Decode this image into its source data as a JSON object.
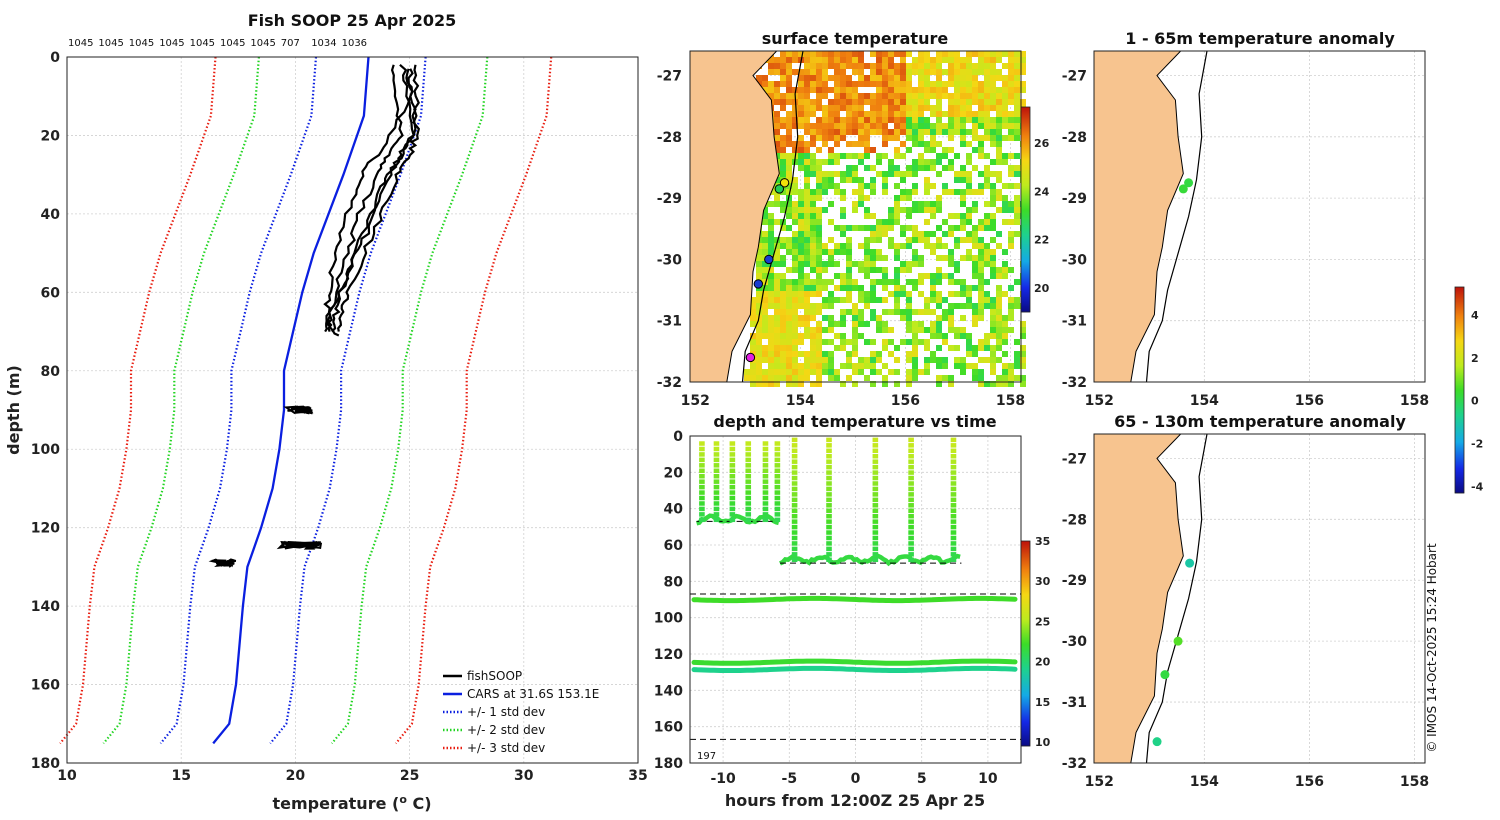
{
  "watermark": "© IMOS 14-Oct-2025 15:24 Hobart",
  "colors": {
    "land": "#f7c48f",
    "coast": "#000000",
    "black": "#000000",
    "blue": "#0a1fe0",
    "green": "#22d422",
    "red": "#e81d10",
    "grid": "#d0d0d0"
  },
  "chart_data": [
    {
      "id": "profile",
      "type": "line",
      "title": "Fish SOOP 25 Apr 2025",
      "xlabel": "temperature (",
      "xlabel_sup": "o",
      "xlabel_end": " C)",
      "ylabel": "depth (m)",
      "xlim": [
        10,
        35
      ],
      "ylim": [
        0,
        180
      ],
      "xticks": [
        "10",
        "15",
        "20",
        "25",
        "30",
        "35"
      ],
      "yticks": [
        "0",
        "20",
        "40",
        "60",
        "80",
        "100",
        "120",
        "140",
        "160",
        "180"
      ],
      "top_counts": [
        "1045",
        "1045",
        "1045",
        "1045",
        "1045",
        "1045",
        "1045",
        "707",
        "1034",
        "1036"
      ],
      "legend": [
        {
          "label": "fishSOOP",
          "color": "#000000",
          "style": "solid"
        },
        {
          "label": "CARS at 31.6S 153.1E",
          "color": "#0a1fe0",
          "style": "solid"
        },
        {
          "label": "+/- 1 std dev",
          "color": "#0a1fe0",
          "style": "dotted"
        },
        {
          "label": "+/- 2 std dev",
          "color": "#22d422",
          "style": "dotted"
        },
        {
          "label": "+/- 3 std dev",
          "color": "#e81d10",
          "style": "dotted"
        }
      ],
      "cars_mean": {
        "depth": [
          0,
          15,
          30,
          50,
          60,
          70,
          80,
          90,
          100,
          110,
          120,
          125,
          130,
          140,
          160,
          170,
          175
        ],
        "temp": [
          23.2,
          23.0,
          22.1,
          20.8,
          20.3,
          19.9,
          19.5,
          19.5,
          19.3,
          19.0,
          18.5,
          18.2,
          17.9,
          17.7,
          17.4,
          17.1,
          16.4
        ]
      },
      "std_offsets": {
        "plus1": 2.5,
        "minus1": -2.3,
        "plus2": 5.2,
        "minus2": -4.8,
        "plus3": 8.0,
        "minus3": -6.7
      },
      "fishsoop_profiles": [
        {
          "depth": [
            2,
            10,
            20,
            25,
            30,
            40,
            50,
            60,
            65,
            70
          ],
          "temp": [
            24.7,
            24.9,
            25.1,
            24.6,
            24.1,
            23.3,
            22.6,
            22.0,
            21.8,
            21.6
          ]
        },
        {
          "depth": [
            2,
            10,
            20,
            25,
            30,
            40,
            50,
            60,
            65,
            70
          ],
          "temp": [
            24.3,
            24.4,
            24.6,
            24.0,
            23.6,
            22.8,
            22.3,
            21.7,
            21.6,
            21.5
          ]
        },
        {
          "depth": [
            2,
            10,
            20,
            25,
            30,
            40,
            50,
            60,
            65,
            70
          ],
          "temp": [
            25.2,
            25.3,
            25.3,
            25.0,
            24.5,
            23.8,
            23.0,
            22.3,
            22.0,
            21.9
          ]
        },
        {
          "depth": [
            3,
            10,
            22,
            28,
            35,
            45,
            55,
            62,
            68,
            71
          ],
          "temp": [
            24.9,
            25.0,
            24.0,
            23.1,
            22.6,
            22.0,
            21.6,
            21.4,
            21.5,
            21.9
          ]
        },
        {
          "depth": [
            3,
            10,
            20,
            27,
            33,
            45,
            53,
            60,
            66,
            70
          ],
          "temp": [
            25.0,
            25.1,
            25.2,
            24.4,
            23.8,
            23.1,
            22.5,
            21.9,
            21.4,
            21.3
          ]
        }
      ],
      "fishsoop_clusters": [
        {
          "depth": 90,
          "t0": 19.6,
          "t1": 20.8
        },
        {
          "depth": 124.5,
          "t0": 19.3,
          "t1": 21.2
        },
        {
          "depth": 129,
          "t0": 16.3,
          "t1": 17.4
        }
      ]
    },
    {
      "id": "sst_map",
      "type": "heatmap",
      "title": "surface temperature",
      "xticks": [
        "152",
        "154",
        "156",
        "158"
      ],
      "yticks": [
        "-27",
        "-28",
        "-29",
        "-30",
        "-31",
        "-32"
      ],
      "xlim": [
        151.9,
        158.2
      ],
      "ylim": [
        -32,
        -26.6
      ],
      "colorbar_ticks": [
        "20",
        "22",
        "24",
        "26"
      ],
      "colorbar_range": [
        19,
        27.5
      ],
      "markers": [
        {
          "lon": 153.7,
          "lat": -28.75,
          "color": "#f2e20a"
        },
        {
          "lon": 153.6,
          "lat": -28.85,
          "color": "#22cc55"
        },
        {
          "lon": 153.4,
          "lat": -30.0,
          "color": "#1a3dd0"
        },
        {
          "lon": 153.2,
          "lat": -30.4,
          "color": "#1a3dd0"
        },
        {
          "lon": 153.05,
          "lat": -31.6,
          "color": "#e020e0"
        }
      ]
    },
    {
      "id": "anom_upper",
      "type": "scatter",
      "title": "1 - 65m temperature anomaly",
      "xticks": [
        "152",
        "154",
        "156",
        "158"
      ],
      "yticks": [
        "-27",
        "-28",
        "-29",
        "-30",
        "-31",
        "-32"
      ],
      "points": [
        {
          "lon": 153.7,
          "lat": -28.75,
          "anomaly": 0.2
        },
        {
          "lon": 153.6,
          "lat": -28.85,
          "anomaly": 0.3
        }
      ]
    },
    {
      "id": "anom_lower",
      "type": "scatter",
      "title": "65 - 130m temperature anomaly",
      "xticks": [
        "152",
        "154",
        "156",
        "158"
      ],
      "yticks": [
        "-27",
        "-28",
        "-29",
        "-30",
        "-31",
        "-32"
      ],
      "colorbar_ticks": [
        "4",
        "2",
        "0",
        "-2",
        "-4"
      ],
      "colorbar_range": [
        -4.3,
        5.3
      ],
      "points": [
        {
          "lon": 153.72,
          "lat": -28.72,
          "anomaly": -1.0
        },
        {
          "lon": 153.5,
          "lat": -30.0,
          "anomaly": 0.7
        },
        {
          "lon": 153.25,
          "lat": -30.55,
          "anomaly": 0.2
        },
        {
          "lon": 153.1,
          "lat": -31.65,
          "anomaly": -0.6
        }
      ]
    },
    {
      "id": "depth_time",
      "type": "scatter",
      "title": "depth and temperature vs time",
      "xlabel": "hours from 12:00Z 25 Apr 25",
      "xlim": [
        -12.5,
        12.5
      ],
      "ylim": [
        0,
        180
      ],
      "xticks": [
        "-10",
        "-5",
        "0",
        "5",
        "10"
      ],
      "yticks": [
        "0",
        "20",
        "40",
        "60",
        "80",
        "100",
        "120",
        "140",
        "160",
        "180"
      ],
      "corner_label": "197",
      "dashed_depths": [
        87,
        167
      ],
      "colorbar_ticks": [
        "10",
        "15",
        "20",
        "25",
        "30",
        "35"
      ],
      "colorbar_range": [
        9.5,
        35
      ],
      "bands": [
        {
          "depth": 90,
          "temp": 22.3
        },
        {
          "depth": 124.5,
          "temp": 22.0
        },
        {
          "depth": 128.5,
          "temp": 19.2
        }
      ],
      "sets": [
        {
          "start": -12.0,
          "end": -5.8,
          "base": 46,
          "bottom": 47,
          "casts": [
            -11.6,
            -10.5,
            -9.3,
            -8.1,
            -6.8,
            -5.9
          ]
        },
        {
          "start": -5.7,
          "end": 8.0,
          "base": 68,
          "bottom": 70,
          "casts": [
            -4.6,
            -2.0,
            1.5,
            4.2,
            7.4
          ]
        }
      ]
    }
  ]
}
